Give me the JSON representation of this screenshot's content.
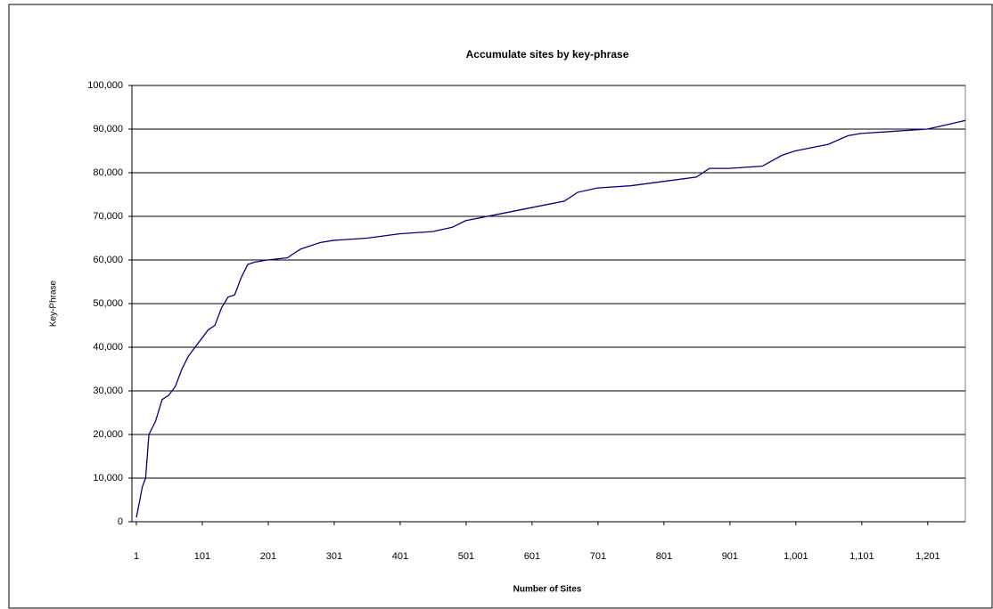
{
  "chart_data": {
    "type": "line",
    "title": "Accumulate sites by key-phrase",
    "x_label": "Number of Sites",
    "y_label": "Key-Phrase",
    "series": [
      {
        "name": "Key-Phrase",
        "color": "#000080",
        "x": [
          1,
          5,
          10,
          15,
          20,
          30,
          40,
          50,
          60,
          70,
          80,
          90,
          100,
          110,
          120,
          130,
          140,
          150,
          160,
          170,
          180,
          200,
          230,
          250,
          280,
          300,
          350,
          400,
          450,
          480,
          500,
          550,
          600,
          650,
          670,
          700,
          750,
          800,
          850,
          870,
          900,
          950,
          980,
          1000,
          1050,
          1080,
          1100,
          1150,
          1200,
          1230,
          1258
        ],
        "values": [
          1000,
          4000,
          8000,
          10000,
          20000,
          23000,
          28000,
          29000,
          31000,
          35000,
          38000,
          40000,
          42000,
          44000,
          45000,
          49000,
          51500,
          52000,
          56000,
          59000,
          59500,
          60000,
          60500,
          62500,
          64000,
          64500,
          65000,
          66000,
          66500,
          67500,
          69000,
          70500,
          72000,
          73500,
          75500,
          76500,
          77000,
          78000,
          79000,
          81000,
          81000,
          81500,
          84000,
          85000,
          86500,
          88500,
          89000,
          89500,
          90000,
          91000,
          92000
        ]
      }
    ],
    "xlim": [
      1,
      1258
    ],
    "xticks": [
      1,
      101,
      201,
      301,
      401,
      501,
      601,
      701,
      801,
      901,
      {
        "value": 1001,
        "label": "1,001"
      },
      {
        "value": 1101,
        "label": "1,101"
      },
      {
        "value": 1201,
        "label": "1,201"
      }
    ],
    "ylim": [
      0,
      100000
    ],
    "yticks": [
      0,
      {
        "value": 10000,
        "label": "10,000"
      },
      {
        "value": 20000,
        "label": "20,000"
      },
      {
        "value": 30000,
        "label": "30,000"
      },
      {
        "value": 40000,
        "label": "40,000"
      },
      {
        "value": 50000,
        "label": "50,000"
      },
      {
        "value": 60000,
        "label": "60,000"
      },
      {
        "value": 70000,
        "label": "70,000"
      },
      {
        "value": 80000,
        "label": "80,000"
      },
      {
        "value": 90000,
        "label": "90,000"
      },
      {
        "value": 100000,
        "label": "100,000"
      }
    ],
    "grid": true
  }
}
